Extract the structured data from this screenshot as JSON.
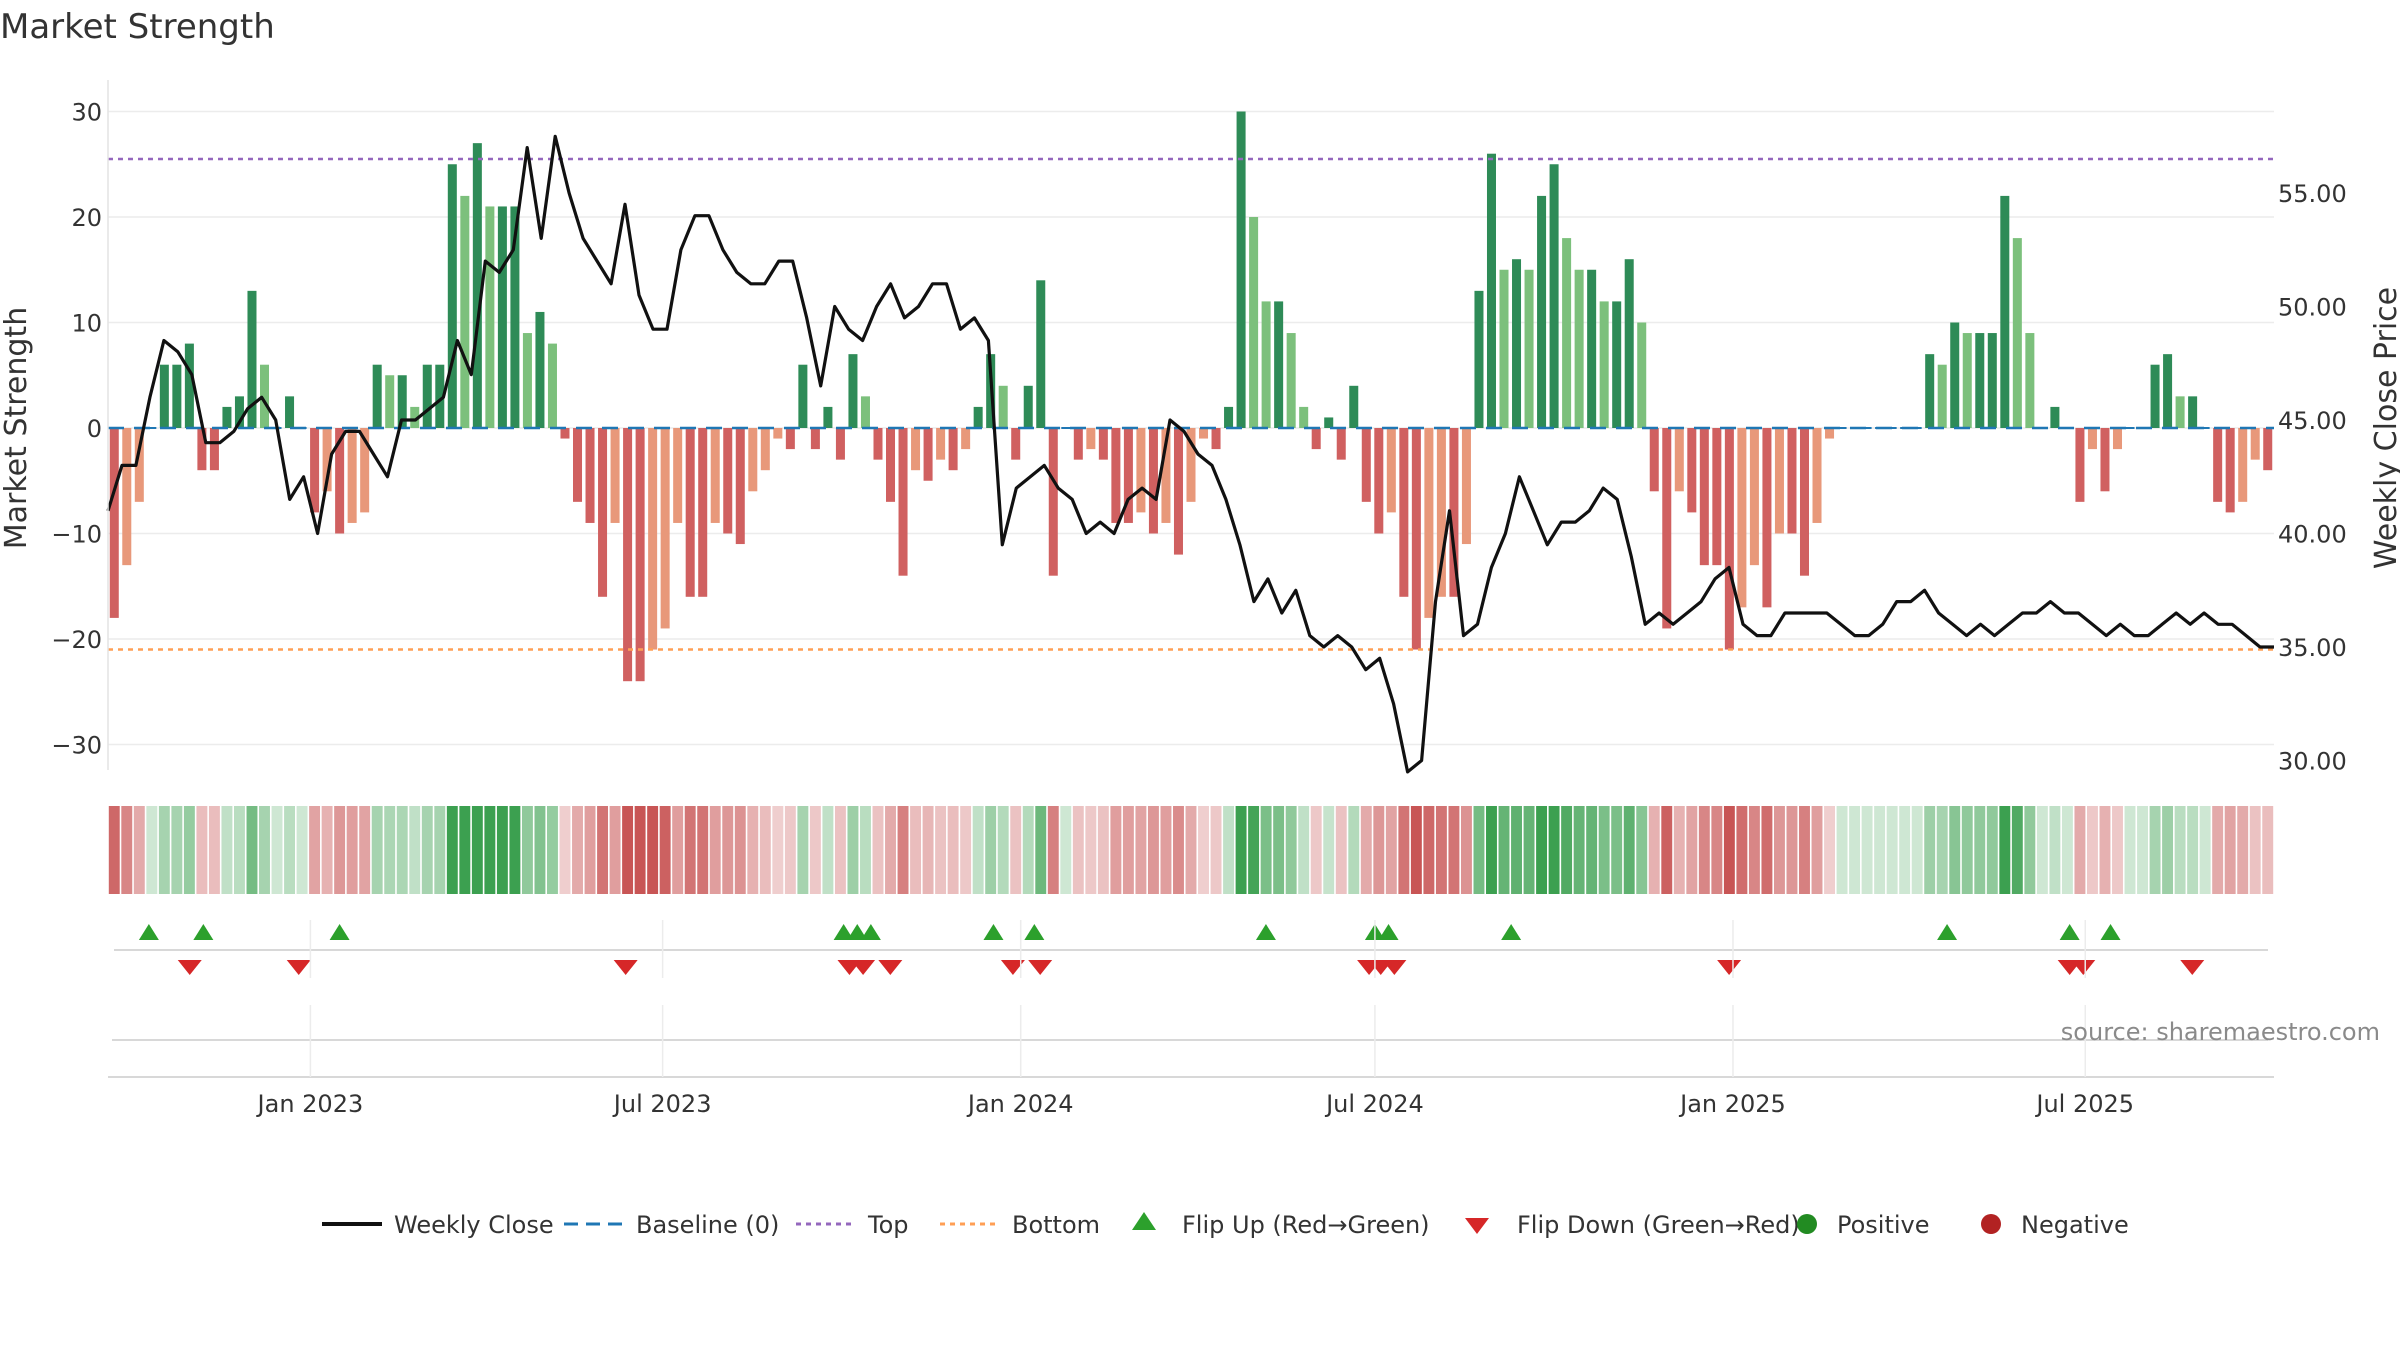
{
  "chart_data": {
    "type": "bar",
    "title": "Market Strength",
    "ylabel_left": "Market Strength",
    "ylabel_right": "Weekly Close Price",
    "ylim_left": [
      -33,
      33
    ],
    "ylim_right": [
      29,
      59
    ],
    "yticks_left": [
      30,
      20,
      10,
      0,
      -10,
      -20,
      -30
    ],
    "yticks_left_labels": [
      "30",
      "20",
      "10",
      "0",
      "−10",
      "−20",
      "−30"
    ],
    "yticks_right": [
      55,
      50,
      45,
      40,
      35,
      30
    ],
    "yticks_right_labels": [
      "55.00",
      "50.00",
      "45.00",
      "40.00",
      "35.00",
      "30.00"
    ],
    "x_start": "2022-09-19",
    "x_end": "2025-10-06",
    "xticks": [
      {
        "date": "2023-01-01",
        "label": "Jan 2023"
      },
      {
        "date": "2023-07-01",
        "label": "Jul 2023"
      },
      {
        "date": "2024-01-01",
        "label": "Jan 2024"
      },
      {
        "date": "2024-07-01",
        "label": "Jul 2024"
      },
      {
        "date": "2025-01-01",
        "label": "Jan 2025"
      },
      {
        "date": "2025-07-01",
        "label": "Jul 2025"
      }
    ],
    "top_line": 25.5,
    "bottom_line": -21,
    "baseline": 0,
    "strength": [
      -18,
      -13,
      -7,
      0,
      6,
      6,
      8,
      -4,
      -4,
      2,
      3,
      13,
      6,
      0,
      3,
      0,
      -8,
      -6,
      -10,
      -9,
      -8,
      6,
      5,
      5,
      2,
      6,
      6,
      25,
      22,
      27,
      21,
      21,
      21,
      9,
      11,
      8,
      -1,
      -7,
      -9,
      -16,
      -9,
      -24,
      -24,
      -21,
      -19,
      -9,
      -16,
      -16,
      -9,
      -10,
      -11,
      -6,
      -4,
      -1,
      -2,
      6,
      -2,
      2,
      -3,
      7,
      3,
      -3,
      -7,
      -14,
      -4,
      -5,
      -3,
      -4,
      -2,
      2,
      7,
      4,
      -3,
      4,
      14,
      -14,
      0,
      -3,
      -2,
      -3,
      -9,
      -9,
      -8,
      -10,
      -9,
      -12,
      -7,
      -1,
      -2,
      2,
      30,
      20,
      12,
      12,
      9,
      2,
      -2,
      1,
      -3,
      4,
      -7,
      -10,
      -8,
      -16,
      -21,
      -18,
      -16,
      -16,
      -11,
      13,
      26,
      15,
      16,
      15,
      22,
      25,
      18,
      15,
      15,
      12,
      12,
      16,
      10,
      -6,
      -19,
      -6,
      -8,
      -13,
      -13,
      -21,
      -17,
      -13,
      -17,
      -10,
      -10,
      -14,
      -9,
      -1,
      0,
      0,
      0,
      0,
      0,
      0,
      0,
      7,
      6,
      10,
      9,
      9,
      9,
      22,
      18,
      9,
      0,
      2,
      0,
      -7,
      -2,
      -6,
      -2,
      0,
      0,
      6,
      7,
      3,
      3,
      0,
      -7,
      -8,
      -7,
      -3,
      -4
    ],
    "price": [
      41,
      43,
      43,
      46,
      48.5,
      48,
      47,
      44,
      44,
      44.5,
      45.5,
      46,
      45,
      41.5,
      42.5,
      40,
      43.5,
      44.5,
      44.5,
      43.5,
      42.5,
      45,
      45,
      45.5,
      46,
      48.5,
      47,
      52,
      51.5,
      52.5,
      57,
      53,
      57.5,
      55,
      53,
      52,
      51,
      54.5,
      50.5,
      49,
      49,
      52.5,
      54,
      54,
      52.5,
      51.5,
      51,
      51,
      52,
      52,
      49.5,
      46.5,
      50,
      49,
      48.5,
      50,
      51,
      49.5,
      50,
      51,
      51,
      49,
      49.5,
      48.5,
      39.5,
      42,
      42.5,
      43,
      42,
      41.5,
      40,
      40.5,
      40,
      41.5,
      42,
      41.5,
      45,
      44.5,
      43.5,
      43,
      41.5,
      39.5,
      37,
      38,
      36.5,
      37.5,
      35.5,
      35,
      35.5,
      35,
      34,
      34.5,
      32.5,
      29.5,
      30,
      37,
      41,
      35.5,
      36,
      38.5,
      40,
      42.5,
      41,
      39.5,
      40.5,
      40.5,
      41,
      42,
      41.5,
      39,
      36,
      36.5,
      36,
      36.5,
      37,
      38,
      38.5,
      36,
      35.5,
      35.5,
      36.5,
      36.5,
      36.5,
      36.5,
      36,
      35.5,
      35.5,
      36,
      37,
      37,
      37.5,
      36.5,
      36,
      35.5,
      36,
      35.5,
      36,
      36.5,
      36.5,
      37,
      36.5,
      36.5,
      36,
      35.5,
      36,
      35.5,
      35.5,
      36,
      36.5,
      36,
      36.5,
      36,
      36,
      35.5,
      35,
      35
    ],
    "flip_up": [
      "2022-10-10",
      "2022-11-07",
      "2023-01-16",
      "2023-10-02",
      "2023-10-09",
      "2023-10-16",
      "2023-12-18",
      "2024-01-08",
      "2024-05-06",
      "2024-07-01",
      "2024-07-08",
      "2024-09-09",
      "2025-04-21",
      "2025-06-23",
      "2025-07-14"
    ],
    "flip_down": [
      "2022-10-31",
      "2022-12-26",
      "2023-06-12",
      "2023-10-05",
      "2023-10-12",
      "2023-10-26",
      "2023-12-28",
      "2024-01-11",
      "2024-06-28",
      "2024-07-04",
      "2024-07-11",
      "2024-12-30",
      "2025-06-23",
      "2025-06-30",
      "2025-08-25"
    ],
    "legend": [
      "Weekly Close",
      "Baseline (0)",
      "Top",
      "Bottom",
      "Flip Up (Red→Green)",
      "Flip Down (Green→Red)",
      "Positive",
      "Negative"
    ],
    "source": "source: sharemaestro.com",
    "colors": {
      "strong_pos": "#2e8b57",
      "weak_pos": "#7cc07c",
      "strong_neg": "#d06060",
      "weak_neg": "#e8987a",
      "price": "#111111",
      "baseline": "#1f77b4",
      "top": "#9467bd",
      "bottom": "#ff9f55",
      "flip_up": "#2ca02c",
      "flip_down": "#d62728",
      "positive": "#228b22",
      "negative": "#b22222"
    }
  }
}
